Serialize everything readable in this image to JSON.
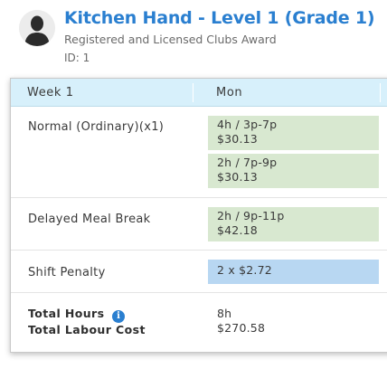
{
  "header": {
    "title": "Kitchen Hand - Level 1 (Grade 1)",
    "subtitle": "Registered and Licensed Clubs Award",
    "id_label": "ID: 1",
    "avatar_icon": "person-silhouette-icon"
  },
  "table": {
    "week_label": "Week  1",
    "day_label": "Mon",
    "rows": [
      {
        "label": "Normal (Ordinary)(x1)",
        "cells": [
          {
            "line1": "4h / 3p-7p",
            "line2": "$30.13",
            "color": "#d8e8d0"
          },
          {
            "line1": "2h / 7p-9p",
            "line2": "$30.13",
            "color": "#d8e8d0"
          }
        ]
      },
      {
        "label": "Delayed Meal Break",
        "cells": [
          {
            "line1": "2h / 9p-11p",
            "line2": "$42.18",
            "color": "#d8e8d0"
          }
        ]
      },
      {
        "label": "Shift Penalty",
        "cells": [
          {
            "line1": "2 x $2.72",
            "color": "#b8d7f2"
          }
        ]
      }
    ],
    "totals": {
      "hours_label": "Total Hours",
      "cost_label": "Total Labour Cost",
      "hours_value": "8h",
      "cost_value": "$270.58",
      "info_icon": "i"
    }
  },
  "colors": {
    "accent": "#2a7fd0",
    "header_row": "#d7f0fb",
    "green_cell": "#d8e8d0",
    "blue_cell": "#b8d7f2"
  }
}
